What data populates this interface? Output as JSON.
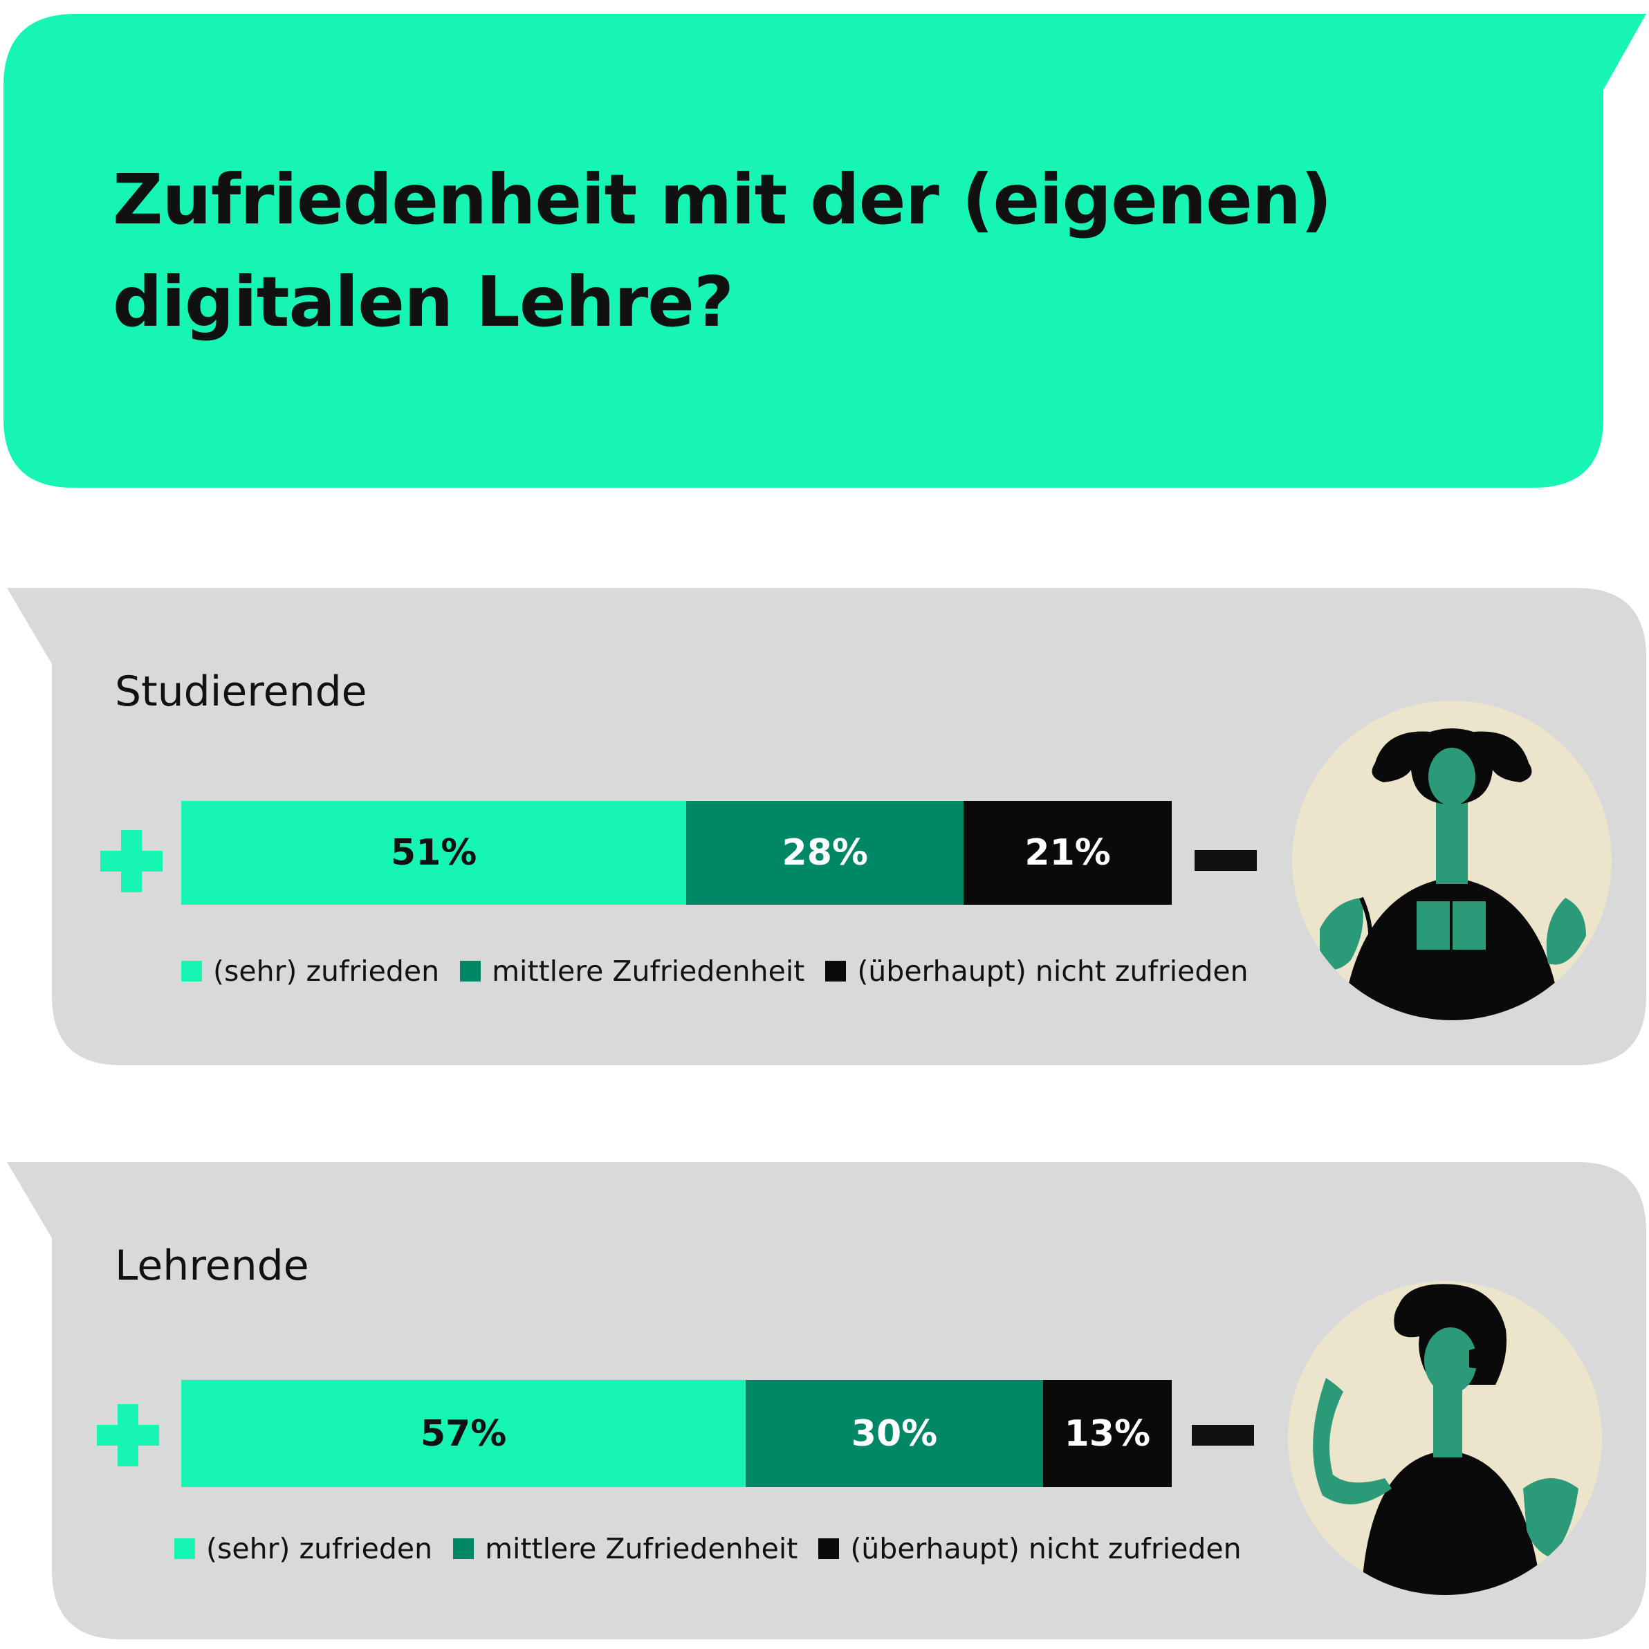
{
  "title": {
    "line1": "Zufriedenheit mit der (eigenen)",
    "line2": "digitalen Lehre?"
  },
  "colors": {
    "title_bubble": "#17F5B4",
    "panel_bubble": "#D9D9D9",
    "zufrieden": "#17F5B4",
    "mittel": "#008866",
    "nicht": "#0A0A0A",
    "avatar_bg": "#ECE4CB",
    "avatar_figure": "#2A9A78"
  },
  "icons": {
    "positive_end": "plus-icon",
    "negative_end": "minus-icon",
    "students_avatar": "student-reading-book-illustration",
    "teachers_avatar": "teacher-gesturing-illustration"
  },
  "chart_data": [
    {
      "type": "bar",
      "stacked": true,
      "orientation": "horizontal",
      "title": "Studierende",
      "categories": [
        "Studierende"
      ],
      "series": [
        {
          "name": "(sehr) zufrieden",
          "values": [
            51
          ],
          "label": "51%"
        },
        {
          "name": "mittlere Zufriedenheit",
          "values": [
            28
          ],
          "label": "28%"
        },
        {
          "name": "(überhaupt) nicht zufrieden",
          "values": [
            21
          ],
          "label": "21%"
        }
      ],
      "xlim": [
        0,
        100
      ],
      "legend": "bottom",
      "grid": false
    },
    {
      "type": "bar",
      "stacked": true,
      "orientation": "horizontal",
      "title": "Lehrende",
      "categories": [
        "Lehrende"
      ],
      "series": [
        {
          "name": "(sehr) zufrieden",
          "values": [
            57
          ],
          "label": "57%"
        },
        {
          "name": "mittlere Zufriedenheit",
          "values": [
            30
          ],
          "label": "30%"
        },
        {
          "name": "(überhaupt) nicht zufrieden",
          "values": [
            13
          ],
          "label": "13%"
        }
      ],
      "xlim": [
        0,
        100
      ],
      "legend": "bottom",
      "grid": false
    }
  ]
}
